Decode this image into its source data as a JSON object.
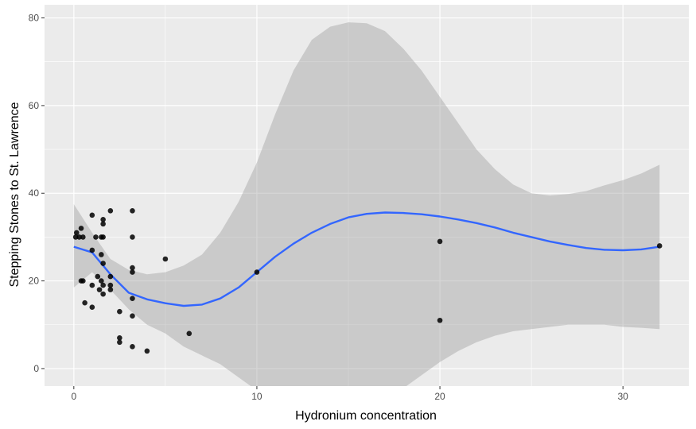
{
  "chart_data": {
    "type": "scatter",
    "xlabel": "Hydronium concentration",
    "ylabel": "Stepping Stones to St. Lawrence",
    "xlim": [
      -1.6,
      33.6
    ],
    "ylim": [
      -4,
      83
    ],
    "x_ticks": [
      0,
      10,
      20,
      30
    ],
    "x_tick_labels": [
      "0",
      "10",
      "20",
      "30"
    ],
    "y_ticks": [
      0,
      20,
      40,
      60,
      80
    ],
    "y_tick_labels": [
      "0",
      "20",
      "40",
      "60",
      "80"
    ],
    "grid": true,
    "legend": "none",
    "points": [
      {
        "x": 0.1,
        "y": 30
      },
      {
        "x": 0.15,
        "y": 31
      },
      {
        "x": 0.3,
        "y": 30
      },
      {
        "x": 0.4,
        "y": 32
      },
      {
        "x": 0.5,
        "y": 30
      },
      {
        "x": 0.4,
        "y": 20
      },
      {
        "x": 0.5,
        "y": 20
      },
      {
        "x": 0.6,
        "y": 15
      },
      {
        "x": 1.0,
        "y": 35
      },
      {
        "x": 1.0,
        "y": 27
      },
      {
        "x": 1.0,
        "y": 19
      },
      {
        "x": 1.0,
        "y": 14
      },
      {
        "x": 1.2,
        "y": 30
      },
      {
        "x": 1.3,
        "y": 21
      },
      {
        "x": 1.4,
        "y": 18
      },
      {
        "x": 1.5,
        "y": 30
      },
      {
        "x": 1.5,
        "y": 26
      },
      {
        "x": 1.5,
        "y": 20
      },
      {
        "x": 1.6,
        "y": 34
      },
      {
        "x": 1.6,
        "y": 33
      },
      {
        "x": 1.6,
        "y": 24
      },
      {
        "x": 1.6,
        "y": 19
      },
      {
        "x": 1.6,
        "y": 17
      },
      {
        "x": 1.6,
        "y": 30
      },
      {
        "x": 2.0,
        "y": 36
      },
      {
        "x": 2.0,
        "y": 21
      },
      {
        "x": 2.0,
        "y": 19
      },
      {
        "x": 2.0,
        "y": 18
      },
      {
        "x": 2.5,
        "y": 13
      },
      {
        "x": 2.5,
        "y": 7
      },
      {
        "x": 2.5,
        "y": 6
      },
      {
        "x": 3.2,
        "y": 36
      },
      {
        "x": 3.2,
        "y": 30
      },
      {
        "x": 3.2,
        "y": 23
      },
      {
        "x": 3.2,
        "y": 22
      },
      {
        "x": 3.2,
        "y": 16
      },
      {
        "x": 3.2,
        "y": 12
      },
      {
        "x": 3.2,
        "y": 5
      },
      {
        "x": 4.0,
        "y": 4
      },
      {
        "x": 5.0,
        "y": 25
      },
      {
        "x": 6.3,
        "y": 8
      },
      {
        "x": 10.0,
        "y": 22
      },
      {
        "x": 20.0,
        "y": 29
      },
      {
        "x": 20.0,
        "y": 11
      },
      {
        "x": 32.0,
        "y": 28
      }
    ],
    "smooth": {
      "method": "loess",
      "x": [
        0,
        1,
        2,
        3,
        4,
        5,
        6,
        7,
        8,
        9,
        10,
        11,
        12,
        13,
        14,
        15,
        16,
        17,
        18,
        19,
        20,
        21,
        22,
        23,
        24,
        25,
        26,
        27,
        28,
        29,
        30,
        31,
        32
      ],
      "y": [
        27.8,
        26.5,
        21.5,
        17.3,
        15.8,
        14.9,
        14.3,
        14.6,
        16.0,
        18.5,
        22.0,
        25.5,
        28.5,
        31.0,
        33.0,
        34.5,
        35.3,
        35.6,
        35.5,
        35.2,
        34.7,
        34.0,
        33.2,
        32.2,
        31.0,
        30.0,
        29.0,
        28.2,
        27.5,
        27.1,
        27.0,
        27.2,
        27.8
      ],
      "lower": [
        18.5,
        22.0,
        18.0,
        13.5,
        10.0,
        8.0,
        5.0,
        3.0,
        1.0,
        -2.0,
        -5.0,
        -8.5,
        -11.5,
        -13.5,
        -14.0,
        -13.0,
        -11.0,
        -8.0,
        -4.5,
        -1.5,
        1.5,
        4.0,
        6.0,
        7.5,
        8.5,
        9.0,
        9.5,
        10.0,
        10.0,
        10.0,
        9.5,
        9.3,
        9.0
      ],
      "upper": [
        37.5,
        31.0,
        25.0,
        22.5,
        21.5,
        22.0,
        23.5,
        26.0,
        31.0,
        38.0,
        47.0,
        58.0,
        68.0,
        75.0,
        78.0,
        79.0,
        78.8,
        77.0,
        73.0,
        68.0,
        62.0,
        56.0,
        50.0,
        45.5,
        42.0,
        40.0,
        39.5,
        39.8,
        40.5,
        41.8,
        43.0,
        44.5,
        46.5
      ],
      "color": "#3366FF",
      "band_color": "#999999"
    },
    "panel_background": "#EBEBEB",
    "grid_color": "#FFFFFF",
    "point_color": "#000000"
  }
}
